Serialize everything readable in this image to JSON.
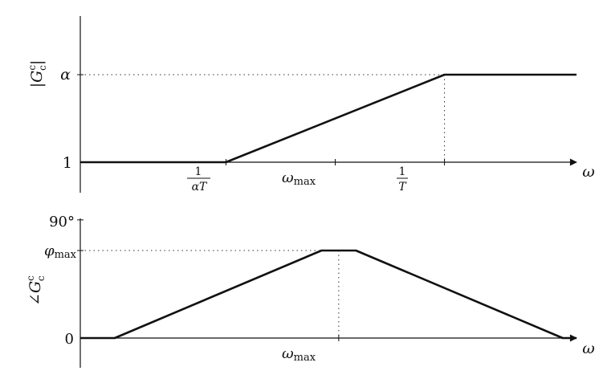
{
  "chart_data": [
    {
      "type": "line",
      "title": "",
      "ylabel": {
        "main": "|G",
        "sup": "c",
        "sub": "c",
        "close": "|"
      },
      "xlabel": "ω",
      "ytick_labels": {
        "low": "1",
        "high": "α"
      },
      "xtick_labels": {
        "left_num": "1",
        "left_den": "αT",
        "mid_main": "ω",
        "mid_sub": "max",
        "right_num": "1",
        "right_den": "T"
      },
      "x": [
        0,
        1,
        2,
        3,
        4,
        5,
        6,
        7
      ],
      "values": [
        1,
        1,
        1,
        1.8333,
        2.6667,
        3.5,
        3.5,
        3.5
      ],
      "corner_x": [
        2,
        5
      ],
      "levels": {
        "low": 1,
        "high": 3.5
      },
      "xlim": [
        0,
        7
      ],
      "ylim": [
        0,
        4.5
      ],
      "grid": false,
      "color": "#111111"
    },
    {
      "type": "line",
      "title": "",
      "ylabel": {
        "main": "∠G",
        "sup": "c",
        "sub": "c"
      },
      "xlabel": "ω",
      "ytick_labels": {
        "top": "90°",
        "peak_main": "φ",
        "peak_sub": "max",
        "zero": "0"
      },
      "xtick_labels": {
        "mid_main": "ω",
        "mid_sub": "max"
      },
      "x": [
        0,
        0.5,
        3.5,
        4,
        7,
        7.2
      ],
      "values": [
        0,
        0,
        1,
        1,
        0,
        0
      ],
      "peak_center_x": 3.75,
      "levels": {
        "zero": 0,
        "peak": 1,
        "top": 1.35
      },
      "xlim": [
        0,
        7.2
      ],
      "ylim": [
        0,
        1.35
      ],
      "grid": false,
      "color": "#111111"
    }
  ]
}
